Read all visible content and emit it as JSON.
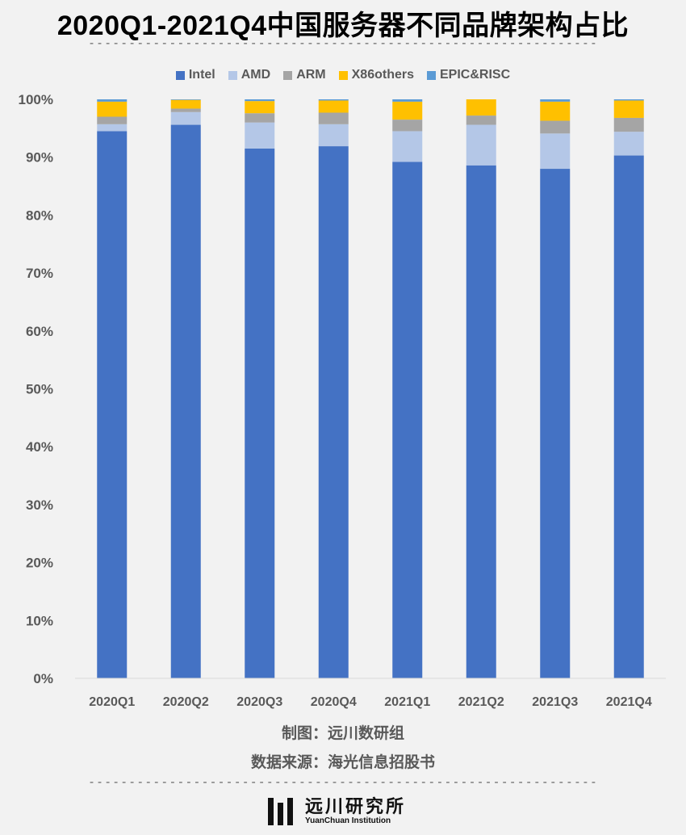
{
  "title": "2020Q1-2021Q4中国服务器不同品牌架构占比",
  "divider_text": "---------------------------------------------------------------",
  "credit_maker": "制图：远川数研组",
  "credit_source": "数据来源：海光信息招股书",
  "logo": {
    "name_cn": "远川研究所",
    "name_en": "YuanChuan Institution",
    "icon": "yuanchuan-bars-logo"
  },
  "chart_data": {
    "type": "bar",
    "stacked": true,
    "categories": [
      "2020Q1",
      "2020Q2",
      "2020Q3",
      "2020Q4",
      "2021Q1",
      "2021Q2",
      "2021Q3",
      "2021Q4"
    ],
    "series": [
      {
        "name": "Intel",
        "color": "#4472c4",
        "values": [
          94.5,
          95.6,
          91.5,
          91.9,
          89.2,
          88.6,
          88.0,
          90.3
        ]
      },
      {
        "name": "AMD",
        "color": "#b4c7e7",
        "values": [
          1.2,
          2.2,
          4.5,
          3.8,
          5.3,
          7.0,
          6.1,
          4.1
        ]
      },
      {
        "name": "ARM",
        "color": "#a5a5a5",
        "values": [
          1.3,
          0.6,
          1.6,
          2.0,
          2.0,
          1.6,
          2.2,
          2.4
        ]
      },
      {
        "name": "X86others",
        "color": "#ffc000",
        "values": [
          2.6,
          1.5,
          2.1,
          2.1,
          3.1,
          2.8,
          3.3,
          3.0
        ]
      },
      {
        "name": "EPIC&RISC",
        "color": "#5b9bd5",
        "values": [
          0.4,
          0.1,
          0.3,
          0.2,
          0.4,
          0.0,
          0.4,
          0.2
        ]
      }
    ],
    "y_ticks": [
      "0%",
      "10%",
      "20%",
      "30%",
      "40%",
      "50%",
      "60%",
      "70%",
      "80%",
      "90%",
      "100%"
    ],
    "ylim": [
      0,
      100
    ],
    "legend_position": "top",
    "grid": false
  }
}
